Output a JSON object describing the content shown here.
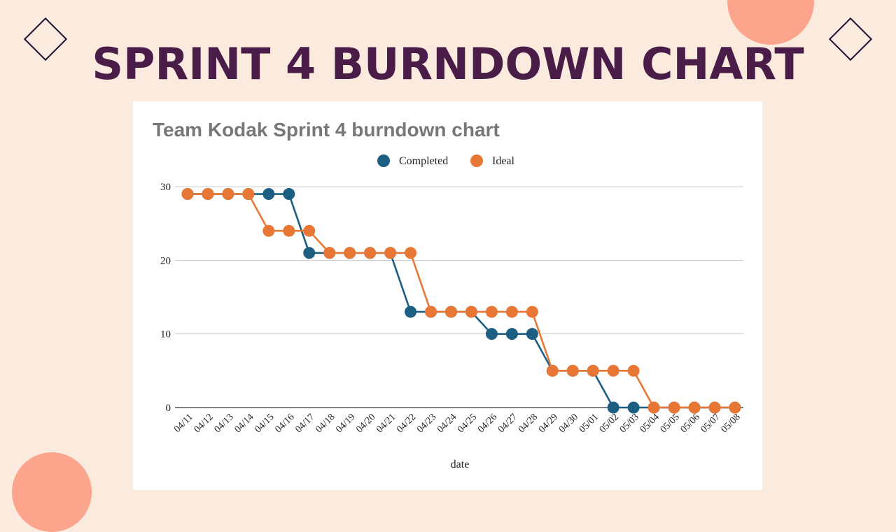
{
  "slide": {
    "title": "SPRINT 4 BURNDOWN CHART"
  },
  "colors": {
    "background": "#fbeade",
    "title": "#4a1c48",
    "accent_circle": "#fca58c",
    "completed": "#1c5f82",
    "ideal": "#e87736"
  },
  "icons": [
    "diamond-outline-icon",
    "diamond-outline-icon"
  ],
  "chart_data": {
    "type": "line",
    "title": "Team Kodak Sprint 4 burndown chart",
    "xlabel": "date",
    "ylabel": "",
    "ylim": [
      0,
      30
    ],
    "yticks": [
      0,
      10,
      20,
      30
    ],
    "grid": true,
    "legend_position": "top-center",
    "categories": [
      "04/11",
      "04/12",
      "04/13",
      "04/14",
      "04/15",
      "04/16",
      "04/17",
      "04/18",
      "04/19",
      "04/20",
      "04/21",
      "04/22",
      "04/23",
      "04/24",
      "04/25",
      "04/26",
      "04/27",
      "04/28",
      "04/29",
      "04/30",
      "05/01",
      "05/02",
      "05/03",
      "05/04",
      "05/05",
      "05/06",
      "05/07",
      "05/08"
    ],
    "series": [
      {
        "name": "Completed",
        "color": "#1c5f82",
        "values": [
          29,
          29,
          29,
          29,
          29,
          29,
          21,
          21,
          21,
          21,
          21,
          13,
          13,
          13,
          13,
          10,
          10,
          10,
          5,
          5,
          5,
          0,
          0,
          0,
          0,
          0,
          0,
          0
        ]
      },
      {
        "name": "Ideal",
        "color": "#e87736",
        "values": [
          29,
          29,
          29,
          29,
          24,
          24,
          24,
          21,
          21,
          21,
          21,
          21,
          13,
          13,
          13,
          13,
          13,
          13,
          5,
          5,
          5,
          5,
          5,
          0,
          0,
          0,
          0,
          0
        ]
      }
    ]
  }
}
